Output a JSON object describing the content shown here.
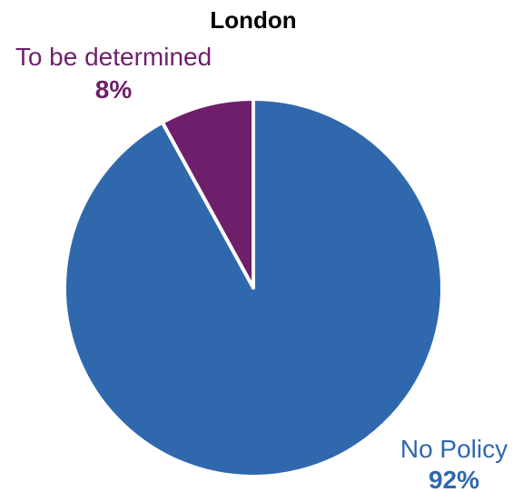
{
  "chart_data": {
    "type": "pie",
    "title": "London",
    "slices": [
      {
        "label": "No Policy",
        "value": 92,
        "value_label": "92%",
        "color": "#3068AE"
      },
      {
        "label": "To be determined",
        "value": 8,
        "value_label": "8%",
        "color": "#6E1F6B"
      }
    ],
    "legend": "none"
  }
}
